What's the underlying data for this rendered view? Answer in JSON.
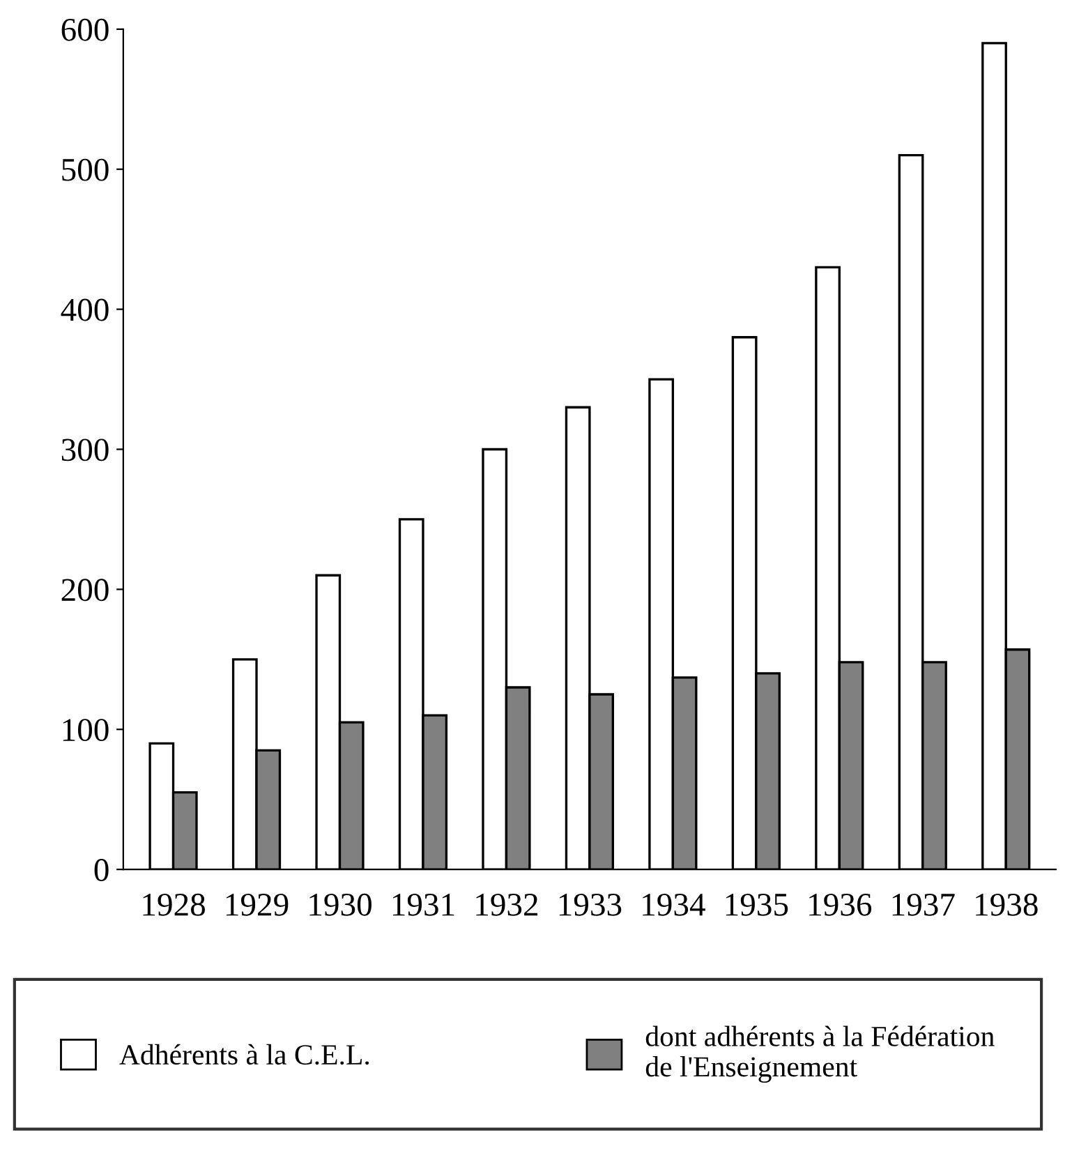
{
  "chart_data": {
    "type": "bar",
    "categories": [
      "1928",
      "1929",
      "1930",
      "1931",
      "1932",
      "1933",
      "1934",
      "1935",
      "1936",
      "1937",
      "1938"
    ],
    "series": [
      {
        "name": "Adhérents à la C.E.L.",
        "color": "#ffffff",
        "values": [
          90,
          150,
          210,
          250,
          300,
          330,
          350,
          380,
          430,
          510,
          590
        ]
      },
      {
        "name": "dont adhérents à la Fédération de l'Enseignement",
        "color": "#808080",
        "values": [
          55,
          85,
          105,
          110,
          130,
          125,
          137,
          140,
          148,
          148,
          157
        ]
      }
    ],
    "ylim": [
      0,
      600
    ],
    "yticks": [
      0,
      100,
      200,
      300,
      400,
      500,
      600
    ],
    "grid": false,
    "legend": "bottom"
  }
}
